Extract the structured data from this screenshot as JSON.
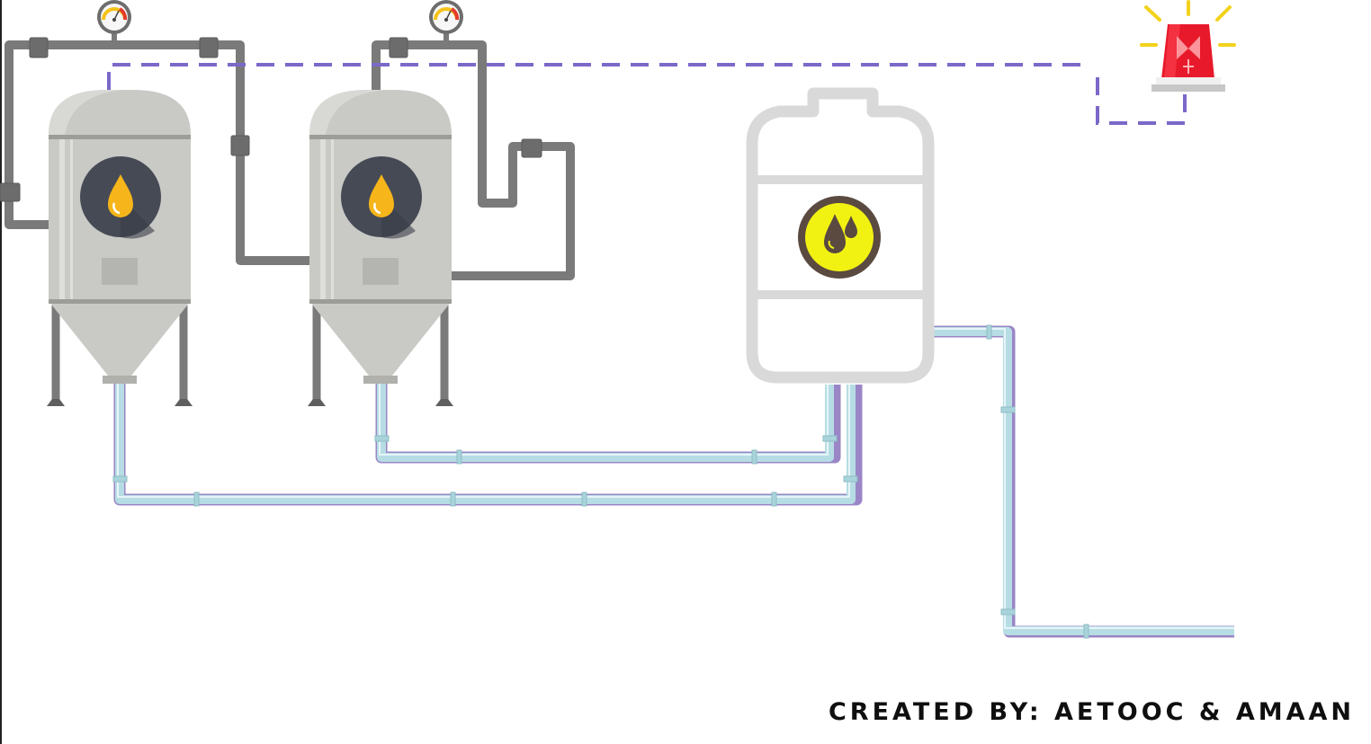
{
  "footer": {
    "credit_text": "CREATED BY: AETOOC & AMAAN"
  },
  "components": {
    "fermenter_tanks": 2,
    "storage_tank": 1,
    "pressure_gauges": 2,
    "alarm_beacon": 1
  },
  "colors": {
    "background": "#ffffff",
    "tank_body": "#c9c9c6",
    "pipe_gray": "#7a7a7a",
    "water_pipe": "#b7dde4",
    "signal_line": "#7b68c8",
    "oil_drop": "#f6b51a",
    "storage_badge": "#f2f212",
    "alarm_red": "#e8192a",
    "alarm_rays": "#f2d21c"
  },
  "icons": {
    "tank_badge": "oil-drop-icon",
    "storage_badge": "oil-drops-icon",
    "gauge": "pressure-gauge-icon",
    "alarm": "alarm-beacon-icon"
  }
}
